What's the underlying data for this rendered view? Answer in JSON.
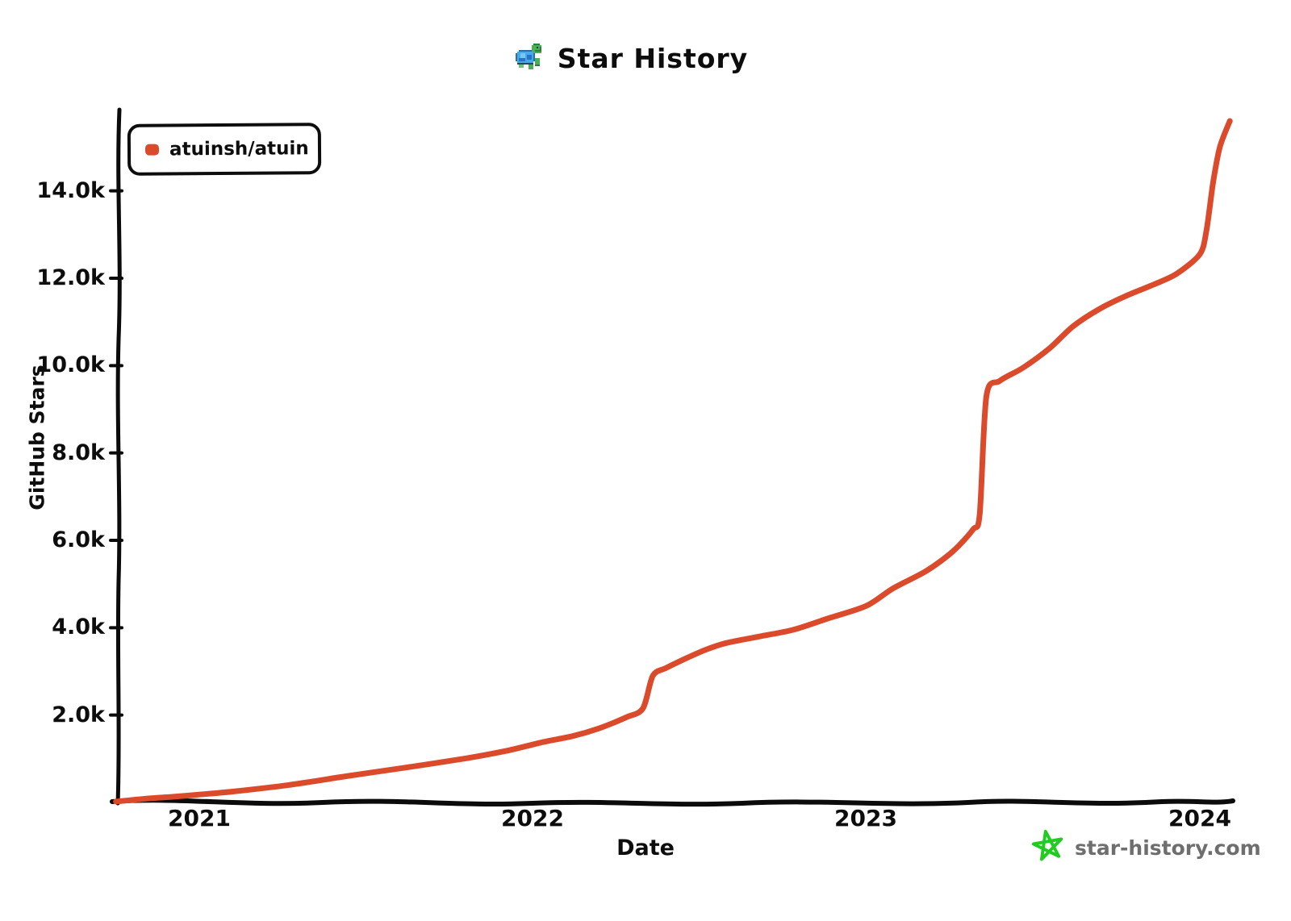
{
  "title": {
    "text": "Star History",
    "logo_icon": "turtle-icon"
  },
  "legend": {
    "series_label": "atuinsh/atuin",
    "marker_color": "#dc4a2c"
  },
  "watermark": {
    "text": "star-history.com",
    "star_color": "#1fcc1f",
    "text_color": "#6e6e6e",
    "icon": "star-doodle-icon"
  },
  "chart_data": {
    "type": "line",
    "title": "Star History",
    "xlabel": "Date",
    "ylabel": "GitHub Stars",
    "legend_position": "top-left",
    "grid": false,
    "background": "#ffffff",
    "x_tick_labels": [
      "2021",
      "2022",
      "2023",
      "2024"
    ],
    "x_tick_values": [
      2021,
      2022,
      2023,
      2024
    ],
    "y_tick_labels": [
      "14.0k",
      "12.0k",
      "10.0k",
      "8.0k",
      "6.0k",
      "4.0k",
      "2.0k"
    ],
    "y_tick_values": [
      14000,
      12000,
      10000,
      8000,
      6000,
      4000,
      2000
    ],
    "x_range": [
      2020.72,
      2024.1
    ],
    "y_range": [
      0,
      15800
    ],
    "series": [
      {
        "name": "atuinsh/atuin",
        "color": "#dc4a2c",
        "points": [
          [
            2020.75,
            20
          ],
          [
            2020.83,
            80
          ],
          [
            2020.92,
            130
          ],
          [
            2021.0,
            180
          ],
          [
            2021.1,
            250
          ],
          [
            2021.27,
            400
          ],
          [
            2021.44,
            600
          ],
          [
            2021.62,
            800
          ],
          [
            2021.8,
            1010
          ],
          [
            2021.92,
            1180
          ],
          [
            2022.03,
            1380
          ],
          [
            2022.12,
            1520
          ],
          [
            2022.2,
            1700
          ],
          [
            2022.28,
            1950
          ],
          [
            2022.33,
            2150
          ],
          [
            2022.36,
            2900
          ],
          [
            2022.4,
            3080
          ],
          [
            2022.46,
            3300
          ],
          [
            2022.52,
            3500
          ],
          [
            2022.58,
            3650
          ],
          [
            2022.68,
            3800
          ],
          [
            2022.78,
            3950
          ],
          [
            2022.88,
            4200
          ],
          [
            2023.0,
            4500
          ],
          [
            2023.08,
            4900
          ],
          [
            2023.18,
            5300
          ],
          [
            2023.26,
            5750
          ],
          [
            2023.32,
            6250
          ],
          [
            2023.34,
            6600
          ],
          [
            2023.36,
            9300
          ],
          [
            2023.4,
            9650
          ],
          [
            2023.47,
            9950
          ],
          [
            2023.55,
            10400
          ],
          [
            2023.62,
            10900
          ],
          [
            2023.7,
            11300
          ],
          [
            2023.78,
            11600
          ],
          [
            2023.86,
            11850
          ],
          [
            2023.93,
            12100
          ],
          [
            2024.0,
            12550
          ],
          [
            2024.02,
            13100
          ],
          [
            2024.04,
            14200
          ],
          [
            2024.06,
            15000
          ],
          [
            2024.09,
            15600
          ]
        ]
      }
    ]
  }
}
